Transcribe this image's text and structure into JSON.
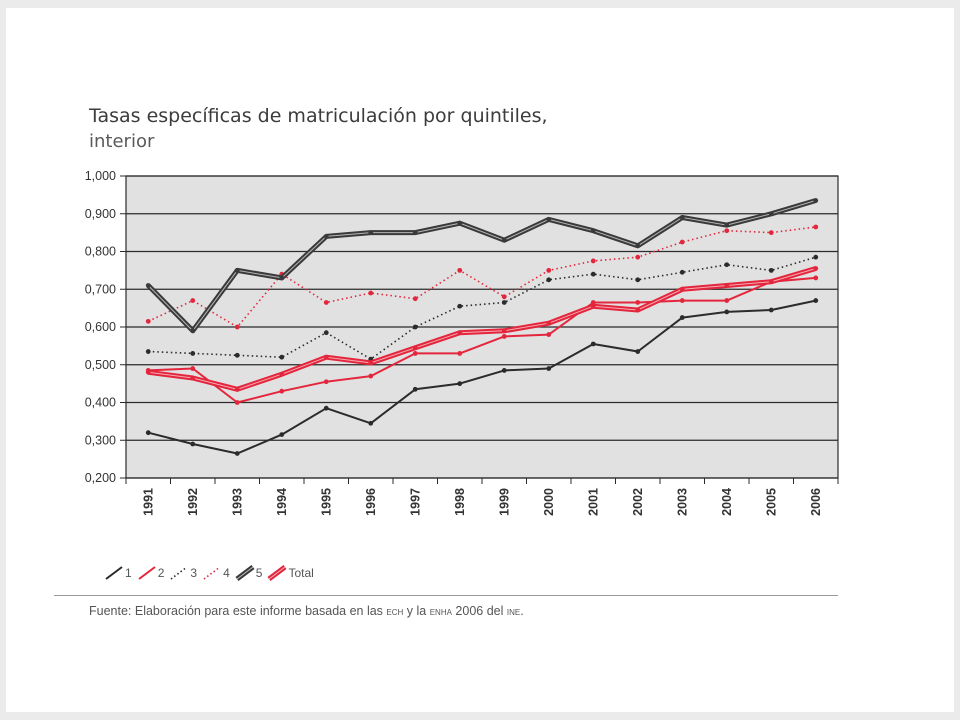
{
  "title": "Tasas específicas de matriculación por quintiles,",
  "subtitle": "interior",
  "legend": [
    {
      "label": "1",
      "color": "#2b2b2b",
      "style": "solid"
    },
    {
      "label": "2",
      "color": "#e4263d",
      "style": "solid"
    },
    {
      "label": "3",
      "color": "#2b2b2b",
      "style": "dotted"
    },
    {
      "label": "4",
      "color": "#e4263d",
      "style": "dotted"
    },
    {
      "label": "5",
      "color": "#3a3a3a",
      "style": "double"
    },
    {
      "label": "Total",
      "color": "#e4263d",
      "style": "double"
    }
  ],
  "source": {
    "prefix": "Fuente: Elaboración para este informe basada en las ",
    "ech": "ECH",
    "mid": " y la ",
    "enha": "ENHA",
    "mid2": " 2006 del ",
    "ine": "INE",
    "end": "."
  },
  "chart_data": {
    "type": "line",
    "title": "Tasas específicas de matriculación por quintiles, interior",
    "ylim": [
      0.2,
      1.0
    ],
    "yticks": [
      "0,200",
      "0,300",
      "0,400",
      "0,500",
      "0,600",
      "0,700",
      "0,800",
      "0,900",
      "1,000"
    ],
    "categories": [
      "1991",
      "1992",
      "1993",
      "1994",
      "1995",
      "1996",
      "1997",
      "1998",
      "1999",
      "2000",
      "2001",
      "2002",
      "2003",
      "2004",
      "2005",
      "2006"
    ],
    "grid": true,
    "legend_position": "bottom",
    "series": [
      {
        "name": "1",
        "color": "#2b2b2b",
        "style": "solid",
        "values": [
          0.32,
          0.29,
          0.265,
          0.315,
          0.385,
          0.345,
          0.435,
          0.45,
          0.485,
          0.49,
          0.555,
          0.535,
          0.625,
          0.64,
          0.645,
          0.67
        ]
      },
      {
        "name": "2",
        "color": "#e4263d",
        "style": "solid",
        "values": [
          0.485,
          0.49,
          0.4,
          0.43,
          0.455,
          0.47,
          0.53,
          0.53,
          0.575,
          0.58,
          0.665,
          0.665,
          0.67,
          0.67,
          0.72,
          0.73
        ]
      },
      {
        "name": "3",
        "color": "#2b2b2b",
        "style": "dotted",
        "values": [
          0.535,
          0.53,
          0.525,
          0.52,
          0.585,
          0.515,
          0.6,
          0.655,
          0.665,
          0.725,
          0.74,
          0.725,
          0.745,
          0.765,
          0.75,
          0.785
        ]
      },
      {
        "name": "4",
        "color": "#e4263d",
        "style": "dotted",
        "values": [
          0.615,
          0.67,
          0.6,
          0.74,
          0.665,
          0.69,
          0.675,
          0.75,
          0.68,
          0.75,
          0.775,
          0.785,
          0.825,
          0.855,
          0.85,
          0.865
        ]
      },
      {
        "name": "5",
        "color": "#3a3a3a",
        "style": "double",
        "values": [
          0.71,
          0.59,
          0.75,
          0.73,
          0.84,
          0.85,
          0.85,
          0.875,
          0.83,
          0.885,
          0.855,
          0.815,
          0.89,
          0.87,
          0.9,
          0.935
        ]
      },
      {
        "name": "Total",
        "color": "#e4263d",
        "style": "double",
        "values": [
          0.48,
          0.465,
          0.435,
          0.475,
          0.52,
          0.505,
          0.545,
          0.585,
          0.59,
          0.61,
          0.655,
          0.645,
          0.7,
          0.71,
          0.72,
          0.755
        ]
      }
    ]
  }
}
